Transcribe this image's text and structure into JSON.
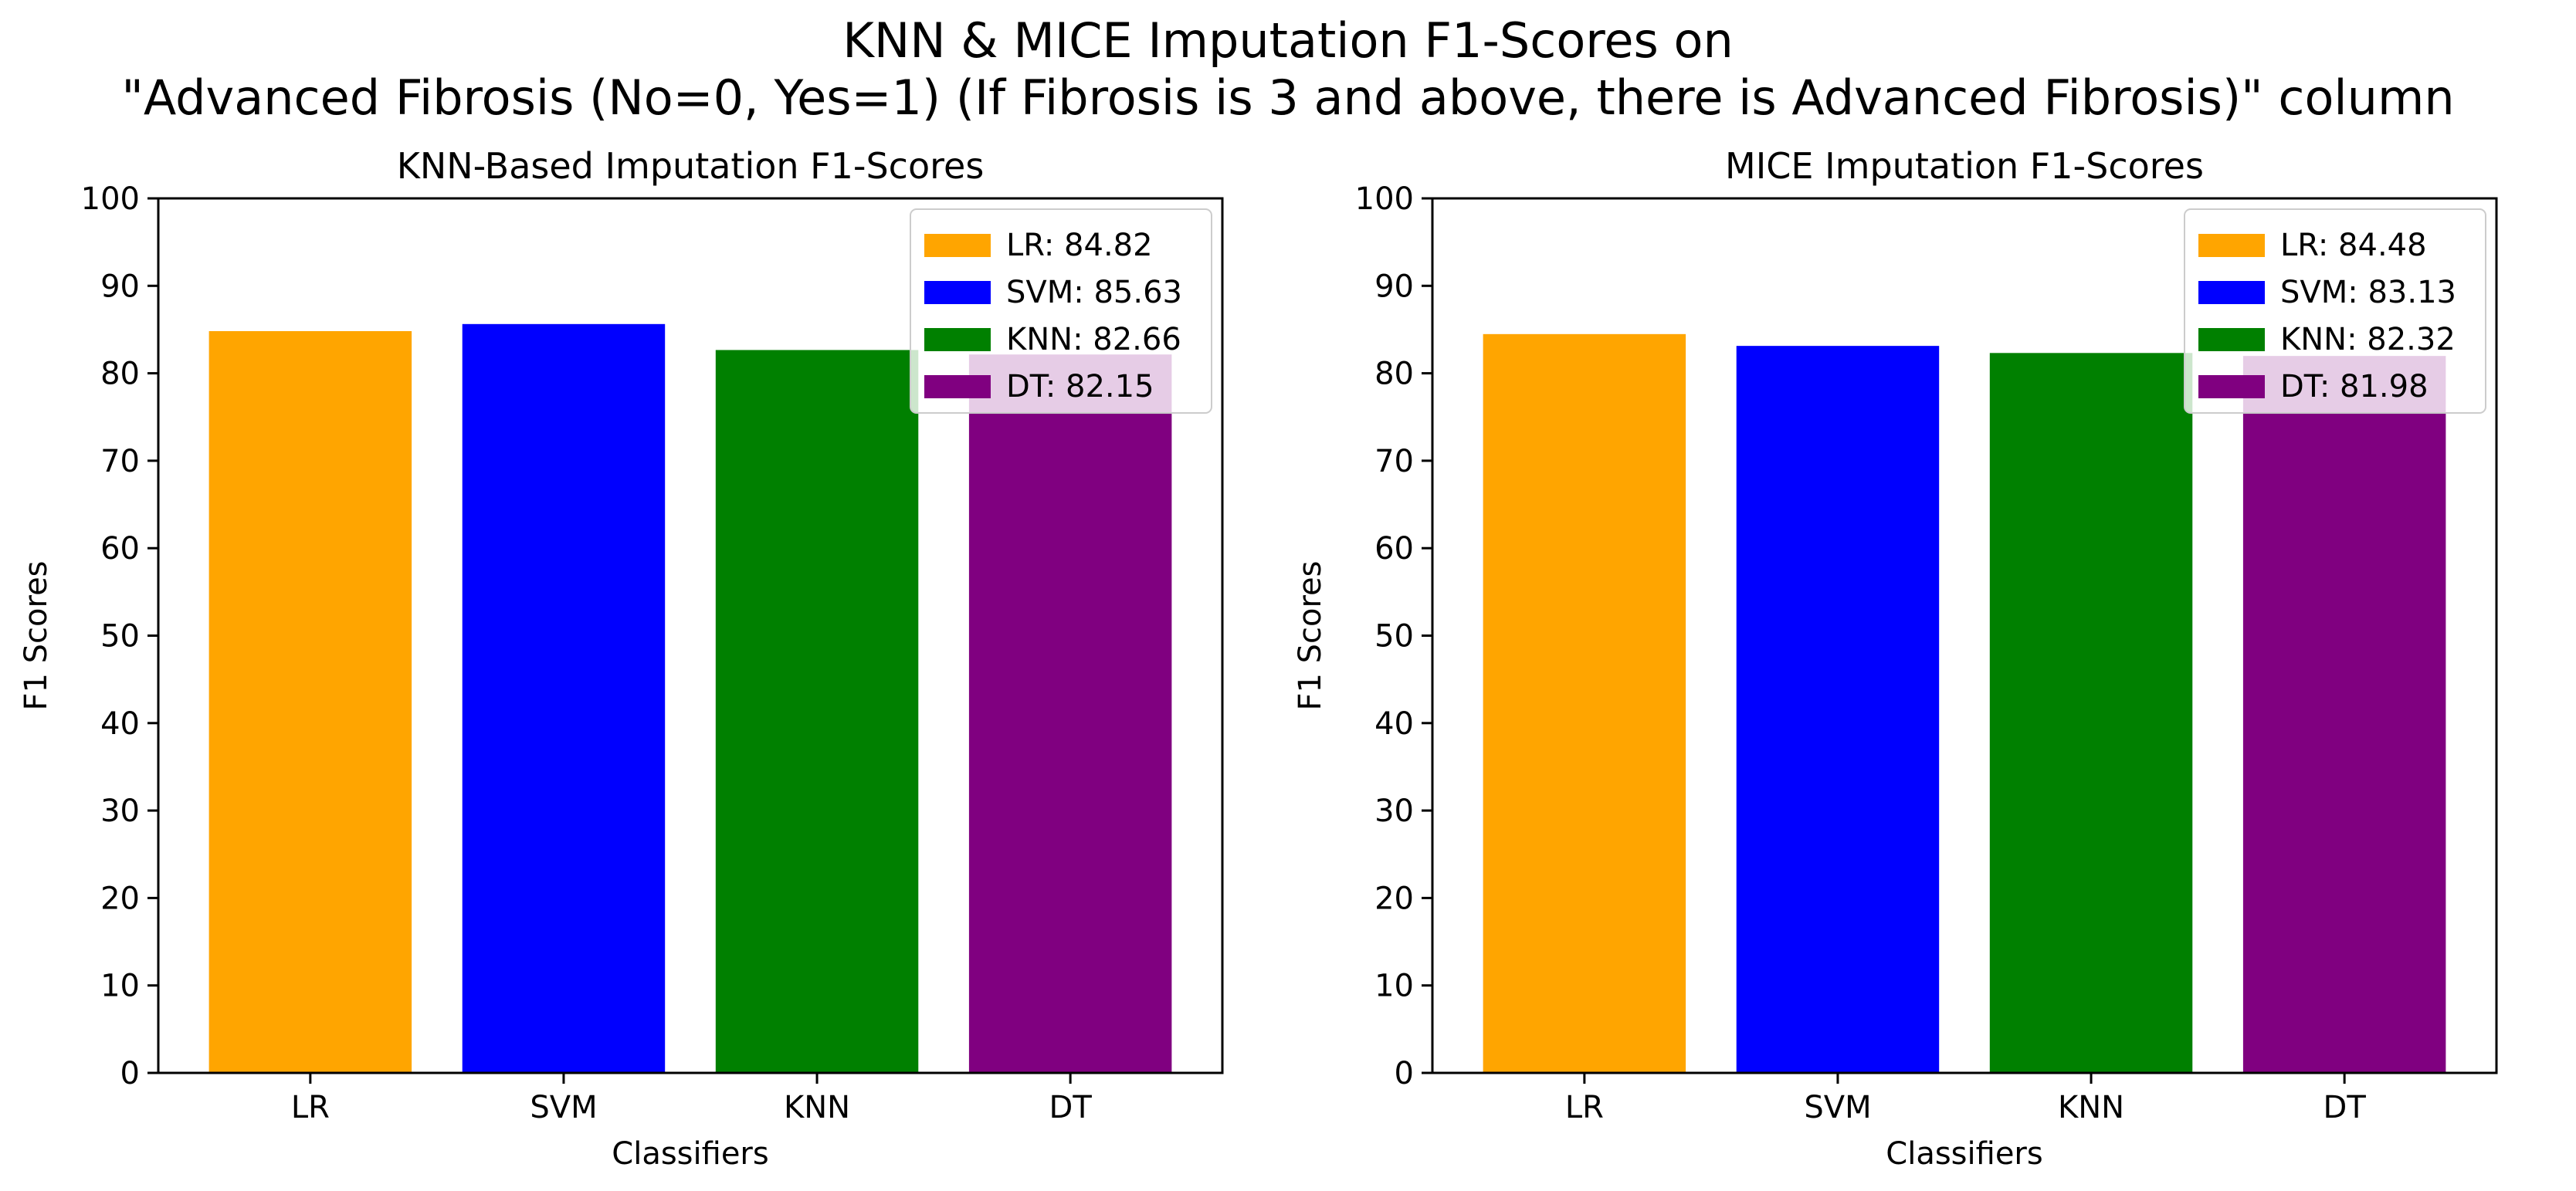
{
  "figure": {
    "suptitle_line1": "KNN & MICE Imputation F1-Scores on",
    "suptitle_line2": "\"Advanced Fibrosis (No=0, Yes=1) (If Fibrosis is 3 and above, there is Advanced Fibrosis)\" column"
  },
  "chart_data": [
    {
      "type": "bar",
      "title": "KNN-Based Imputation F1-Scores",
      "xlabel": "Classifiers",
      "ylabel": "F1 Scores",
      "ylim": [
        0,
        100
      ],
      "yticks": [
        0,
        10,
        20,
        30,
        40,
        50,
        60,
        70,
        80,
        90,
        100
      ],
      "categories": [
        "LR",
        "SVM",
        "KNN",
        "DT"
      ],
      "values": [
        84.82,
        85.63,
        82.66,
        82.15
      ],
      "colors": [
        "#ffa500",
        "#0000ff",
        "#008000",
        "#800080"
      ],
      "grid": false,
      "legend_position": "top-right",
      "legend": [
        "LR: 84.82",
        "SVM: 85.63",
        "KNN: 82.66",
        "DT: 82.15"
      ]
    },
    {
      "type": "bar",
      "title": "MICE Imputation F1-Scores",
      "xlabel": "Classifiers",
      "ylabel": "F1 Scores",
      "ylim": [
        0,
        100
      ],
      "yticks": [
        0,
        10,
        20,
        30,
        40,
        50,
        60,
        70,
        80,
        90,
        100
      ],
      "categories": [
        "LR",
        "SVM",
        "KNN",
        "DT"
      ],
      "values": [
        84.48,
        83.13,
        82.32,
        81.98
      ],
      "colors": [
        "#ffa500",
        "#0000ff",
        "#008000",
        "#800080"
      ],
      "grid": false,
      "legend_position": "top-right",
      "legend": [
        "LR: 84.48",
        "SVM: 83.13",
        "KNN: 82.32",
        "DT: 81.98"
      ]
    }
  ]
}
